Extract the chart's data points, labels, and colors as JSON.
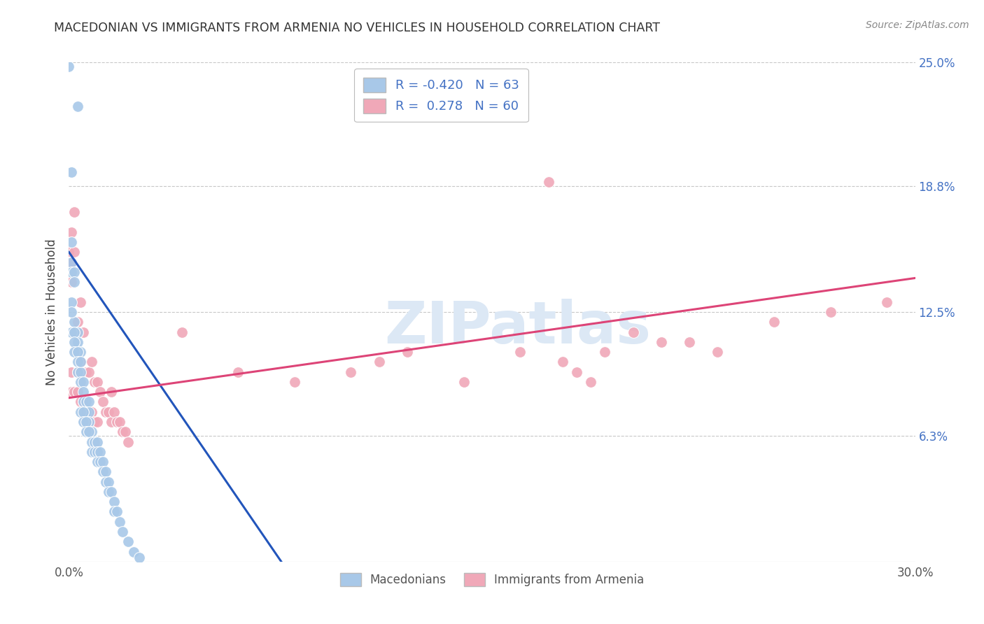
{
  "title": "MACEDONIAN VS IMMIGRANTS FROM ARMENIA NO VEHICLES IN HOUSEHOLD CORRELATION CHART",
  "source": "Source: ZipAtlas.com",
  "ylabel": "No Vehicles in Household",
  "legend_blue_label": "Macedonians",
  "legend_pink_label": "Immigrants from Armenia",
  "R_blue": -0.42,
  "N_blue": 63,
  "R_pink": 0.278,
  "N_pink": 60,
  "xlim": [
    0.0,
    0.3
  ],
  "ylim": [
    0.0,
    0.25
  ],
  "xticks": [
    0.0,
    0.05,
    0.1,
    0.15,
    0.2,
    0.25,
    0.3
  ],
  "ytick_vals_right": [
    0.063,
    0.125,
    0.188,
    0.25
  ],
  "ytick_labels_right": [
    "6.3%",
    "12.5%",
    "18.8%",
    "25.0%"
  ],
  "background_color": "#ffffff",
  "grid_color": "#c8c8c8",
  "title_color": "#333333",
  "blue_dot_color": "#a8c8e8",
  "pink_dot_color": "#f0a8b8",
  "blue_line_color": "#2255bb",
  "pink_line_color": "#dd4477",
  "watermark": "ZIPatlas",
  "watermark_color": "#dce8f5",
  "dot_size": 130,
  "blue_scatter_x": [
    0.0,
    0.003,
    0.001,
    0.001,
    0.001,
    0.001,
    0.002,
    0.002,
    0.002,
    0.003,
    0.003,
    0.004,
    0.001,
    0.001,
    0.001,
    0.002,
    0.002,
    0.002,
    0.003,
    0.003,
    0.003,
    0.004,
    0.004,
    0.004,
    0.005,
    0.005,
    0.005,
    0.006,
    0.006,
    0.007,
    0.007,
    0.007,
    0.008,
    0.004,
    0.005,
    0.005,
    0.006,
    0.006,
    0.007,
    0.008,
    0.008,
    0.009,
    0.009,
    0.01,
    0.01,
    0.01,
    0.011,
    0.011,
    0.012,
    0.012,
    0.013,
    0.013,
    0.014,
    0.014,
    0.015,
    0.016,
    0.016,
    0.017,
    0.018,
    0.019,
    0.021,
    0.023,
    0.025
  ],
  "blue_scatter_y": [
    0.248,
    0.228,
    0.195,
    0.16,
    0.15,
    0.145,
    0.145,
    0.14,
    0.12,
    0.115,
    0.11,
    0.105,
    0.13,
    0.125,
    0.115,
    0.115,
    0.11,
    0.105,
    0.105,
    0.1,
    0.095,
    0.095,
    0.09,
    0.1,
    0.09,
    0.085,
    0.08,
    0.08,
    0.075,
    0.08,
    0.075,
    0.07,
    0.065,
    0.075,
    0.075,
    0.07,
    0.07,
    0.065,
    0.065,
    0.06,
    0.055,
    0.06,
    0.055,
    0.06,
    0.055,
    0.05,
    0.055,
    0.05,
    0.05,
    0.045,
    0.045,
    0.04,
    0.04,
    0.035,
    0.035,
    0.03,
    0.025,
    0.025,
    0.02,
    0.015,
    0.01,
    0.005,
    0.002
  ],
  "pink_scatter_x": [
    0.0,
    0.0,
    0.001,
    0.001,
    0.001,
    0.001,
    0.001,
    0.002,
    0.002,
    0.002,
    0.003,
    0.003,
    0.003,
    0.004,
    0.004,
    0.004,
    0.005,
    0.005,
    0.006,
    0.006,
    0.007,
    0.007,
    0.008,
    0.008,
    0.009,
    0.009,
    0.01,
    0.01,
    0.011,
    0.012,
    0.013,
    0.014,
    0.015,
    0.015,
    0.016,
    0.017,
    0.018,
    0.019,
    0.02,
    0.021,
    0.04,
    0.06,
    0.08,
    0.1,
    0.11,
    0.12,
    0.14,
    0.16,
    0.17,
    0.175,
    0.18,
    0.185,
    0.19,
    0.2,
    0.21,
    0.22,
    0.23,
    0.25,
    0.27,
    0.29
  ],
  "pink_scatter_y": [
    0.155,
    0.15,
    0.165,
    0.15,
    0.14,
    0.095,
    0.085,
    0.175,
    0.155,
    0.085,
    0.12,
    0.095,
    0.085,
    0.13,
    0.1,
    0.08,
    0.115,
    0.08,
    0.095,
    0.075,
    0.095,
    0.075,
    0.1,
    0.075,
    0.09,
    0.07,
    0.09,
    0.07,
    0.085,
    0.08,
    0.075,
    0.075,
    0.085,
    0.07,
    0.075,
    0.07,
    0.07,
    0.065,
    0.065,
    0.06,
    0.115,
    0.095,
    0.09,
    0.095,
    0.1,
    0.105,
    0.09,
    0.105,
    0.19,
    0.1,
    0.095,
    0.09,
    0.105,
    0.115,
    0.11,
    0.11,
    0.105,
    0.12,
    0.125,
    0.13
  ],
  "blue_line_x": [
    0.0,
    0.085
  ],
  "blue_line_y": [
    0.155,
    -0.02
  ],
  "pink_line_x": [
    0.0,
    0.3
  ],
  "pink_line_y": [
    0.082,
    0.142
  ]
}
